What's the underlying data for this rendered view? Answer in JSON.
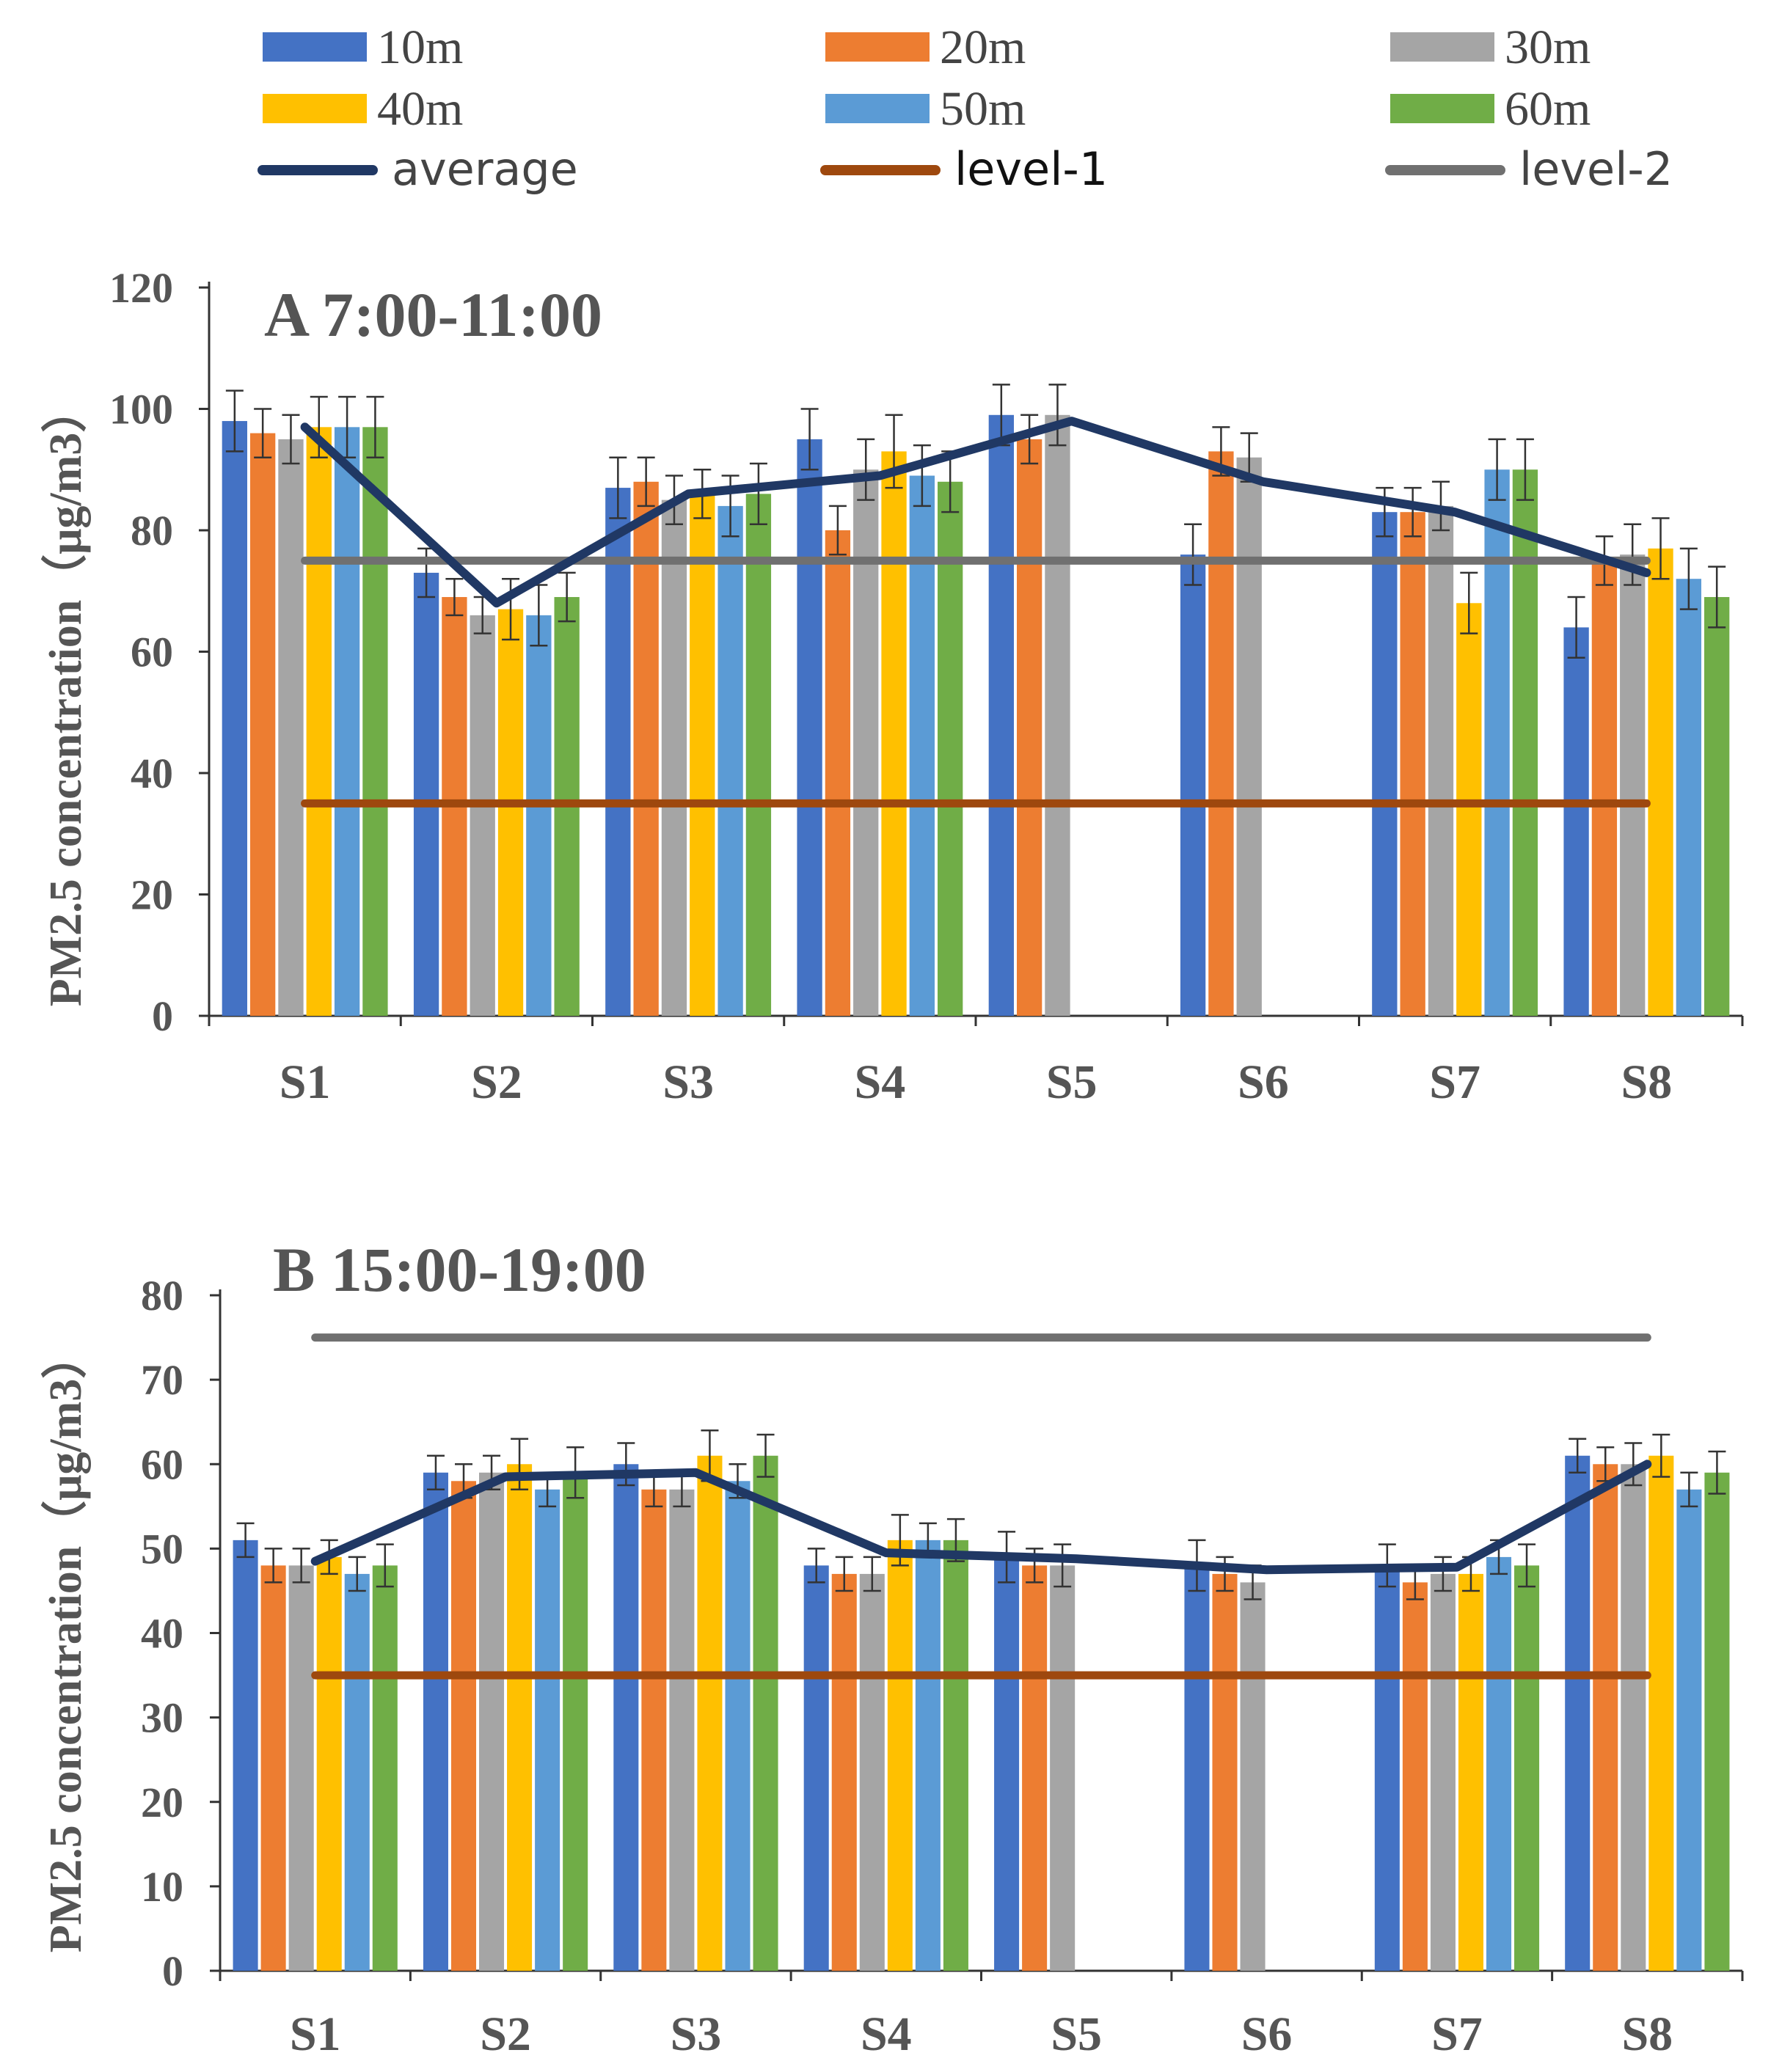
{
  "colors": {
    "10m": "#4472c4",
    "20m": "#ed7d31",
    "30m": "#a5a5a5",
    "40m": "#ffc000",
    "50m": "#5b9bd5",
    "60m": "#70ad47",
    "average": "#203864",
    "level-1": "#9e480e",
    "level-2": "#707070",
    "axis": "#333333",
    "error": "#333333"
  },
  "legend": [
    {
      "name": "10m",
      "kind": "bar"
    },
    {
      "name": "20m",
      "kind": "bar"
    },
    {
      "name": "30m",
      "kind": "bar"
    },
    {
      "name": "40m",
      "kind": "bar"
    },
    {
      "name": "50m",
      "kind": "bar"
    },
    {
      "name": "60m",
      "kind": "bar"
    },
    {
      "name": "average",
      "kind": "line"
    },
    {
      "name": "level-1",
      "kind": "line"
    },
    {
      "name": "level-2",
      "kind": "line"
    }
  ],
  "chart_data": [
    {
      "type": "bar",
      "title": "A 7:00-11:00",
      "ylabel": "PM2.5 concentration（μg/m3）",
      "ylim": [
        0,
        120
      ],
      "yticks": [
        0,
        20,
        40,
        60,
        80,
        100,
        120
      ],
      "categories": [
        "S1",
        "S2",
        "S3",
        "S4",
        "S5",
        "S6",
        "S7",
        "S8"
      ],
      "series": [
        {
          "name": "10m",
          "values": [
            98,
            73,
            87,
            95,
            99,
            76,
            83,
            64
          ],
          "errors": [
            5,
            4,
            5,
            5,
            5,
            5,
            4,
            5
          ]
        },
        {
          "name": "20m",
          "values": [
            96,
            69,
            88,
            80,
            95,
            93,
            83,
            75
          ],
          "errors": [
            4,
            3,
            4,
            4,
            4,
            4,
            4,
            4
          ]
        },
        {
          "name": "30m",
          "values": [
            95,
            66,
            85,
            90,
            99,
            92,
            84,
            76
          ],
          "errors": [
            4,
            3,
            4,
            5,
            5,
            4,
            4,
            5
          ]
        },
        {
          "name": "40m",
          "values": [
            97,
            67,
            86,
            93,
            null,
            null,
            68,
            77
          ],
          "errors": [
            5,
            5,
            4,
            6,
            null,
            null,
            5,
            5
          ]
        },
        {
          "name": "50m",
          "values": [
            97,
            66,
            84,
            89,
            null,
            null,
            90,
            72
          ],
          "errors": [
            5,
            5,
            5,
            5,
            null,
            null,
            5,
            5
          ]
        },
        {
          "name": "60m",
          "values": [
            97,
            69,
            86,
            88,
            null,
            null,
            90,
            69
          ],
          "errors": [
            5,
            4,
            5,
            5,
            null,
            null,
            5,
            5
          ]
        }
      ],
      "lines": [
        {
          "name": "average",
          "values": [
            97,
            68,
            86,
            89,
            98,
            88,
            83,
            73
          ]
        },
        {
          "name": "level-1",
          "values": [
            35,
            35,
            35,
            35,
            35,
            35,
            35,
            35
          ]
        },
        {
          "name": "level-2",
          "values": [
            75,
            75,
            75,
            75,
            75,
            75,
            75,
            75
          ]
        }
      ]
    },
    {
      "type": "bar",
      "title": "B 15:00-19:00",
      "ylabel": "PM2.5 concentration（μg/m3）",
      "ylim": [
        0,
        80
      ],
      "yticks": [
        0,
        10,
        20,
        30,
        40,
        50,
        60,
        70,
        80
      ],
      "categories": [
        "S1",
        "S2",
        "S3",
        "S4",
        "S5",
        "S6",
        "S7",
        "S8"
      ],
      "series": [
        {
          "name": "10m",
          "values": [
            51,
            59,
            60,
            48,
            49,
            48,
            48,
            61
          ],
          "errors": [
            2,
            2,
            2.5,
            2,
            3,
            3,
            2.5,
            2
          ]
        },
        {
          "name": "20m",
          "values": [
            48,
            58,
            57,
            47,
            48,
            47,
            46,
            60
          ],
          "errors": [
            2,
            2,
            2,
            2,
            2,
            2,
            2,
            2
          ]
        },
        {
          "name": "30m",
          "values": [
            48,
            59,
            57,
            47,
            48,
            46,
            47,
            60
          ],
          "errors": [
            2,
            2,
            2,
            2,
            2.5,
            2,
            2,
            2.5
          ]
        },
        {
          "name": "40m",
          "values": [
            49,
            60,
            61,
            51,
            null,
            null,
            47,
            61
          ],
          "errors": [
            2,
            3,
            3,
            3,
            null,
            null,
            2,
            2.5
          ]
        },
        {
          "name": "50m",
          "values": [
            47,
            57,
            58,
            51,
            null,
            null,
            49,
            57
          ],
          "errors": [
            2,
            2,
            2,
            2,
            null,
            null,
            2,
            2
          ]
        },
        {
          "name": "60m",
          "values": [
            48,
            59,
            61,
            51,
            null,
            null,
            48,
            59
          ],
          "errors": [
            2.5,
            3,
            2.5,
            2.5,
            null,
            null,
            2.5,
            2.5
          ]
        }
      ],
      "lines": [
        {
          "name": "average",
          "values": [
            48.5,
            58.5,
            59,
            49.5,
            48.8,
            47.5,
            47.8,
            60
          ]
        },
        {
          "name": "level-1",
          "values": [
            35,
            35,
            35,
            35,
            35,
            35,
            35,
            35
          ]
        },
        {
          "name": "level-2",
          "values": [
            75,
            75,
            75,
            75,
            75,
            75,
            75,
            75
          ]
        }
      ]
    }
  ]
}
